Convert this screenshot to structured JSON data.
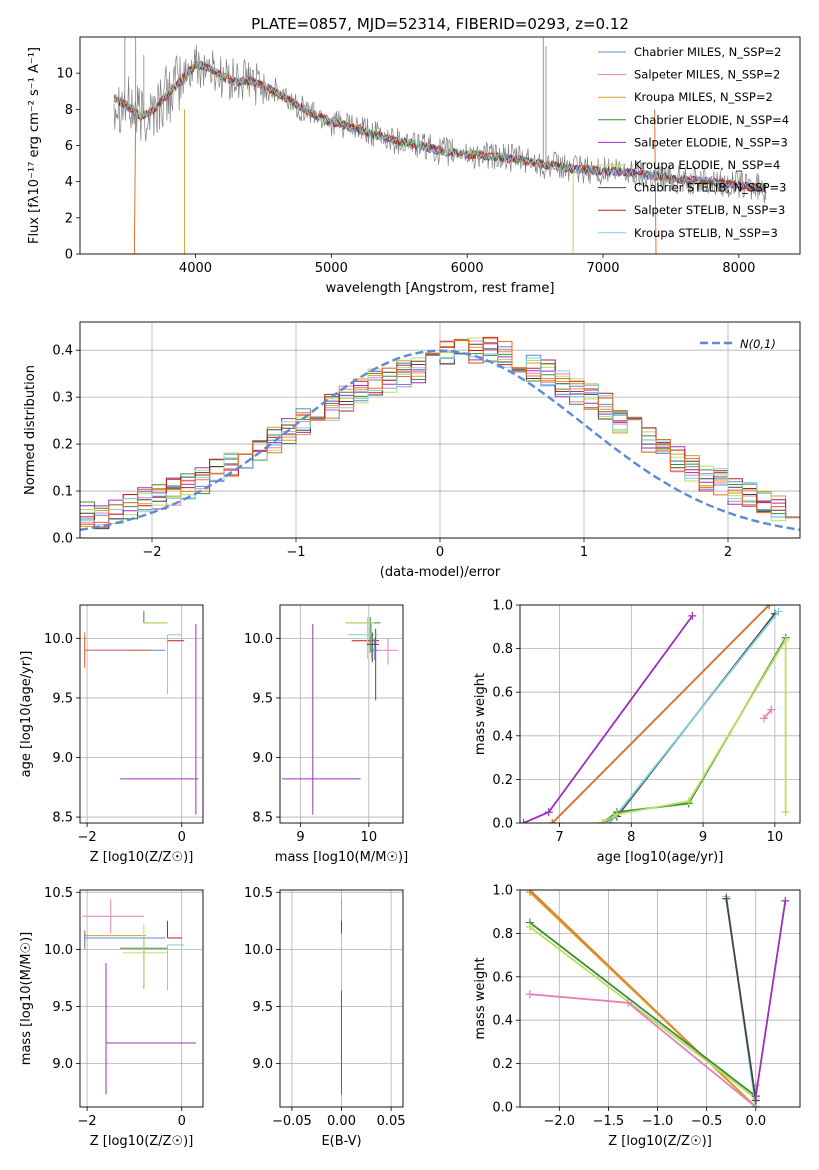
{
  "colors": [
    "#5b8bd6",
    "#e87fb8",
    "#d99a2b",
    "#3c8c3c",
    "#9b30c0",
    "#b8e05a",
    "#444444",
    "#c01c1c",
    "#7fd0e0",
    "#e8702a"
  ],
  "chart_data": [
    {
      "id": "spectrum",
      "type": "line",
      "title": "PLATE=0857, MJD=52314, FIBERID=0293, z=0.12",
      "xlabel": "wavelength [Angstrom, rest frame]",
      "ylabel": "Flux [fλ10⁻¹⁷ erg cm⁻² s⁻¹ A⁻¹]",
      "xlim": [
        3150,
        8450
      ],
      "ylim": [
        0,
        12
      ],
      "xticks": [
        4000,
        5000,
        6000,
        7000,
        8000
      ],
      "yticks": [
        0,
        2,
        4,
        6,
        8,
        10
      ],
      "grid": false,
      "legend_position": "top-right",
      "series": [
        {
          "name": "Chabrier MILES, N_SSP=2"
        },
        {
          "name": "Salpeter MILES, N_SSP=2"
        },
        {
          "name": "Kroupa MILES, N_SSP=2"
        },
        {
          "name": "Chabrier ELODIE, N_SSP=4"
        },
        {
          "name": "Salpeter ELODIE, N_SSP=3"
        },
        {
          "name": "Kroupa ELODIE, N_SSP=4"
        },
        {
          "name": "Chabrier STELIB, N_SSP=3"
        },
        {
          "name": "Salpeter STELIB, N_SSP=3"
        },
        {
          "name": "Kroupa STELIB, N_SSP=3"
        }
      ],
      "approx_continuum": {
        "x": [
          3400,
          3500,
          3600,
          3700,
          3800,
          3900,
          4000,
          4100,
          4200,
          4300,
          4400,
          4500,
          4600,
          4800,
          5000,
          5200,
          5400,
          5600,
          5800,
          6000,
          6200,
          6400,
          6600,
          6800,
          7000,
          7200,
          7400,
          7600,
          7800,
          8000,
          8200
        ],
        "y": [
          8.6,
          8.2,
          7.6,
          8.0,
          8.9,
          9.6,
          10.5,
          10.3,
          9.8,
          9.5,
          9.6,
          9.3,
          8.9,
          8.0,
          7.3,
          6.9,
          6.4,
          6.1,
          5.7,
          5.5,
          5.4,
          5.2,
          4.9,
          4.7,
          4.6,
          4.5,
          4.3,
          4.1,
          4.0,
          3.8,
          3.6
        ]
      }
    },
    {
      "id": "residuals",
      "type": "step",
      "xlabel": "(data-model)/error",
      "ylabel": "Normed distribution",
      "xlim": [
        -2.5,
        2.5
      ],
      "ylim": [
        0,
        0.46
      ],
      "xticks": [
        -2,
        -1,
        0,
        1,
        2
      ],
      "yticks": [
        0.0,
        0.1,
        0.2,
        0.3,
        0.4
      ],
      "grid": true,
      "legend_position": "top-right",
      "legend_label": "N(0,1)",
      "bin_width": 0.1,
      "bins_start": -2.5,
      "base_shape": [
        0.05,
        0.04,
        0.06,
        0.07,
        0.08,
        0.09,
        0.1,
        0.11,
        0.12,
        0.14,
        0.16,
        0.17,
        0.19,
        0.21,
        0.23,
        0.25,
        0.26,
        0.28,
        0.3,
        0.31,
        0.33,
        0.34,
        0.35,
        0.36,
        0.38,
        0.39,
        0.4,
        0.4,
        0.4,
        0.39,
        0.38,
        0.36,
        0.35,
        0.33,
        0.31,
        0.3,
        0.28,
        0.25,
        0.23,
        0.21,
        0.19,
        0.17,
        0.15,
        0.13,
        0.12,
        0.1,
        0.09,
        0.07,
        0.06,
        0.05
      ]
    },
    {
      "id": "age-vs-z",
      "type": "errorbar",
      "xlabel": "Z [log10(Z/Z☉)]",
      "ylabel": "age  [log10(age/yr)]",
      "xlim": [
        -2.15,
        0.45
      ],
      "ylim": [
        8.45,
        10.28
      ],
      "xticks": [
        -2,
        0
      ],
      "yticks": [
        8.5,
        9.0,
        9.5,
        10.0
      ],
      "grid": true,
      "points": [
        {
          "c": 0,
          "x": -2.05,
          "y": 9.9,
          "xe": [
            0.0,
            1.7
          ],
          "ye": [
            0.12,
            0.12
          ]
        },
        {
          "c": 9,
          "x": -2.05,
          "y": 9.9,
          "xe": [
            0.0,
            1.4
          ],
          "ye": [
            0.15,
            0.15
          ]
        },
        {
          "c": 1,
          "x": -2.05,
          "y": 9.9,
          "xe": [
            0.0,
            1.0
          ],
          "ye": [
            0.0,
            0.0
          ]
        },
        {
          "c": 3,
          "x": -0.8,
          "y": 10.13,
          "xe": [
            0.0,
            0.5
          ],
          "ye": [
            0.0,
            0.1
          ]
        },
        {
          "c": 5,
          "x": -0.8,
          "y": 10.13,
          "xe": [
            0.0,
            0.5
          ],
          "ye": [
            0.0,
            0.0
          ]
        },
        {
          "c": 8,
          "x": -0.3,
          "y": 10.03,
          "xe": [
            0.0,
            0.3
          ],
          "ye": [
            0.5,
            0.0
          ]
        },
        {
          "c": 7,
          "x": -0.3,
          "y": 9.98,
          "xe": [
            0.0,
            0.35
          ],
          "ye": [
            0.0,
            0.0
          ]
        },
        {
          "c": 4,
          "x": 0.3,
          "y": 8.82,
          "xe": [
            1.6,
            0.05
          ],
          "ye": [
            0.3,
            1.3
          ]
        }
      ]
    },
    {
      "id": "age-vs-mass",
      "type": "errorbar",
      "xlabel": "mass [log10(M/M☉)]",
      "ylabel": "",
      "xlim": [
        8.7,
        10.5
      ],
      "ylim": [
        8.45,
        10.28
      ],
      "xticks": [
        9,
        10
      ],
      "yticks": [
        8.5,
        9.0,
        9.5,
        10.0
      ],
      "grid": true,
      "points": [
        {
          "c": 4,
          "x": 9.18,
          "y": 8.82,
          "xe": [
            0.45,
            0.7
          ],
          "ye": [
            0.3,
            1.3
          ]
        },
        {
          "c": 1,
          "x": 10.28,
          "y": 9.9,
          "xe": [
            0.2,
            0.15
          ],
          "ye": [
            0.12,
            0.1
          ]
        },
        {
          "c": 7,
          "x": 10.1,
          "y": 9.98,
          "xe": [
            0.35,
            0.05
          ],
          "ye": [
            0.5,
            0.1
          ]
        },
        {
          "c": 3,
          "x": 10.02,
          "y": 10.13,
          "xe": [
            0.35,
            0.15
          ],
          "ye": [
            0.25,
            0.05
          ]
        },
        {
          "c": 8,
          "x": 10.04,
          "y": 10.03,
          "xe": [
            0.35,
            0.1
          ],
          "ye": [
            0.2,
            0.1
          ]
        },
        {
          "c": 5,
          "x": 9.98,
          "y": 10.13,
          "xe": [
            0.3,
            0.1
          ],
          "ye": [
            0.3,
            0.05
          ]
        },
        {
          "c": 0,
          "x": 10.08,
          "y": 9.9,
          "xe": [
            0.05,
            0.05
          ],
          "ye": [
            0.08,
            0.1
          ]
        },
        {
          "c": 6,
          "x": 10.05,
          "y": 9.95,
          "xe": [
            0.08,
            0.1
          ],
          "ye": [
            0.15,
            0.1
          ]
        }
      ]
    },
    {
      "id": "mass-weight-vs-age",
      "type": "line",
      "xlabel": "age  [log10(age/yr)]",
      "ylabel": "mass weight",
      "xlim": [
        6.45,
        10.35
      ],
      "ylim": [
        0,
        1
      ],
      "xticks": [
        7,
        8,
        9,
        10
      ],
      "yticks": [
        0.0,
        0.2,
        0.4,
        0.6,
        0.8,
        1.0
      ],
      "grid": true,
      "lines": [
        {
          "c": 4,
          "x": [
            6.5,
            6.85,
            8.85
          ],
          "y": [
            0.0,
            0.05,
            0.95
          ]
        },
        {
          "c": 0,
          "x": [
            6.9,
            9.92
          ],
          "y": [
            0.0,
            1.0
          ]
        },
        {
          "c": 9,
          "x": [
            6.9,
            9.92
          ],
          "y": [
            0.0,
            1.0
          ]
        },
        {
          "c": 6,
          "x": [
            7.6,
            7.8,
            10.0
          ],
          "y": [
            0.0,
            0.03,
            0.96
          ]
        },
        {
          "c": 8,
          "x": [
            7.7,
            7.8,
            10.05
          ],
          "y": [
            0.0,
            0.04,
            0.97
          ]
        },
        {
          "c": 3,
          "x": [
            7.6,
            7.8,
            8.8,
            10.15
          ],
          "y": [
            0.0,
            0.05,
            0.09,
            0.85
          ]
        },
        {
          "c": 5,
          "x": [
            7.6,
            7.8,
            8.8,
            10.15,
            10.15
          ],
          "y": [
            0.0,
            0.04,
            0.1,
            0.84,
            0.05
          ]
        },
        {
          "c": 1,
          "x": [
            9.85,
            9.95
          ],
          "y": [
            0.48,
            0.52
          ]
        }
      ]
    },
    {
      "id": "mass-vs-z",
      "type": "errorbar",
      "xlabel": "Z [log10(Z/Z☉)]",
      "ylabel": "mass [log10(M/M☉)]",
      "xlim": [
        -2.15,
        0.45
      ],
      "ylim": [
        8.62,
        10.52
      ],
      "xticks": [
        -2,
        0
      ],
      "yticks": [
        9.0,
        9.5,
        10.0,
        10.5
      ],
      "grid": true,
      "points": [
        {
          "c": 1,
          "x": -1.5,
          "y": 10.29,
          "xe": [
            0.6,
            0.7
          ],
          "ye": [
            0.15,
            0.15
          ]
        },
        {
          "c": 2,
          "x": -2.05,
          "y": 10.12,
          "xe": [
            0.0,
            1.3
          ],
          "ye": [
            0.1,
            0.05
          ]
        },
        {
          "c": 0,
          "x": -2.05,
          "y": 10.1,
          "xe": [
            0.0,
            1.7
          ],
          "ye": [
            0.1,
            0.05
          ]
        },
        {
          "c": 3,
          "x": -0.8,
          "y": 10.01,
          "xe": [
            0.5,
            0.5
          ],
          "ye": [
            0.35,
            0.1
          ]
        },
        {
          "c": 5,
          "x": -0.8,
          "y": 9.97,
          "xe": [
            0.45,
            0.5
          ],
          "ye": [
            0.3,
            0.25
          ]
        },
        {
          "c": 7,
          "x": -0.3,
          "y": 10.1,
          "xe": [
            0.0,
            0.3
          ],
          "ye": [
            0.0,
            0.15
          ]
        },
        {
          "c": 8,
          "x": -0.3,
          "y": 10.04,
          "xe": [
            0.0,
            0.35
          ],
          "ye": [
            0.4,
            0.0
          ]
        },
        {
          "c": 4,
          "x": -1.6,
          "y": 9.18,
          "xe": [
            0.0,
            1.9
          ],
          "ye": [
            0.45,
            0.7
          ]
        }
      ]
    },
    {
      "id": "mass-vs-ebv",
      "type": "errorbar",
      "xlabel": "E(B-V)",
      "ylabel": "",
      "xlim": [
        -0.062,
        0.062
      ],
      "ylim": [
        8.62,
        10.52
      ],
      "xticks": [
        -0.05,
        0.0,
        0.05
      ],
      "yticks": [
        9.0,
        9.5,
        10.0,
        10.5
      ],
      "xticklabels": [
        "−0.05",
        "0.00",
        "0.05"
      ],
      "grid": true,
      "points": [
        {
          "c": 4,
          "x": 0.0,
          "y": 9.18,
          "xe": [
            0,
            0
          ],
          "ye": [
            0.45,
            0.7
          ]
        },
        {
          "c": 1,
          "x": 0.0,
          "y": 10.29,
          "xe": [
            0,
            0
          ],
          "ye": [
            0.15,
            0.15
          ]
        },
        {
          "c": 7,
          "x": 0.0,
          "y": 10.1,
          "xe": [
            0,
            0
          ],
          "ye": [
            0.1,
            0.15
          ]
        },
        {
          "c": 8,
          "x": 0.0,
          "y": 10.04,
          "xe": [
            0,
            0
          ],
          "ye": [
            0.4,
            0.1
          ]
        }
      ]
    },
    {
      "id": "mass-weight-vs-z",
      "type": "line",
      "xlabel": "Z [log10(Z/Z☉)]",
      "ylabel": "mass weight",
      "xlim": [
        -2.4,
        0.45
      ],
      "ylim": [
        0,
        1
      ],
      "xticks": [
        -2.0,
        -1.5,
        -1.0,
        -0.5,
        0.0
      ],
      "xticklabels": [
        "−2.0",
        "−1.5",
        "−1.0",
        "−0.5",
        "0.0"
      ],
      "yticks": [
        0.0,
        0.2,
        0.4,
        0.6,
        0.8,
        1.0
      ],
      "grid": true,
      "lines": [
        {
          "c": 9,
          "x": [
            -2.3,
            0.0
          ],
          "y": [
            1.0,
            0.0
          ]
        },
        {
          "c": 2,
          "x": [
            -2.3,
            0.0
          ],
          "y": [
            0.99,
            0.0
          ]
        },
        {
          "c": 3,
          "x": [
            -2.3,
            0.0
          ],
          "y": [
            0.85,
            0.05
          ]
        },
        {
          "c": 5,
          "x": [
            -2.3,
            0.0
          ],
          "y": [
            0.83,
            0.04
          ]
        },
        {
          "c": 1,
          "x": [
            -2.3,
            -1.3,
            0.0,
            0.0
          ],
          "y": [
            0.52,
            0.48,
            0.0,
            0.1
          ]
        },
        {
          "c": 8,
          "x": [
            -0.3,
            0.0
          ],
          "y": [
            0.97,
            0.0
          ]
        },
        {
          "c": 6,
          "x": [
            -0.3,
            0.0
          ],
          "y": [
            0.96,
            0.03
          ]
        },
        {
          "c": 4,
          "x": [
            0.0,
            0.3
          ],
          "y": [
            0.05,
            0.95
          ]
        }
      ]
    }
  ]
}
